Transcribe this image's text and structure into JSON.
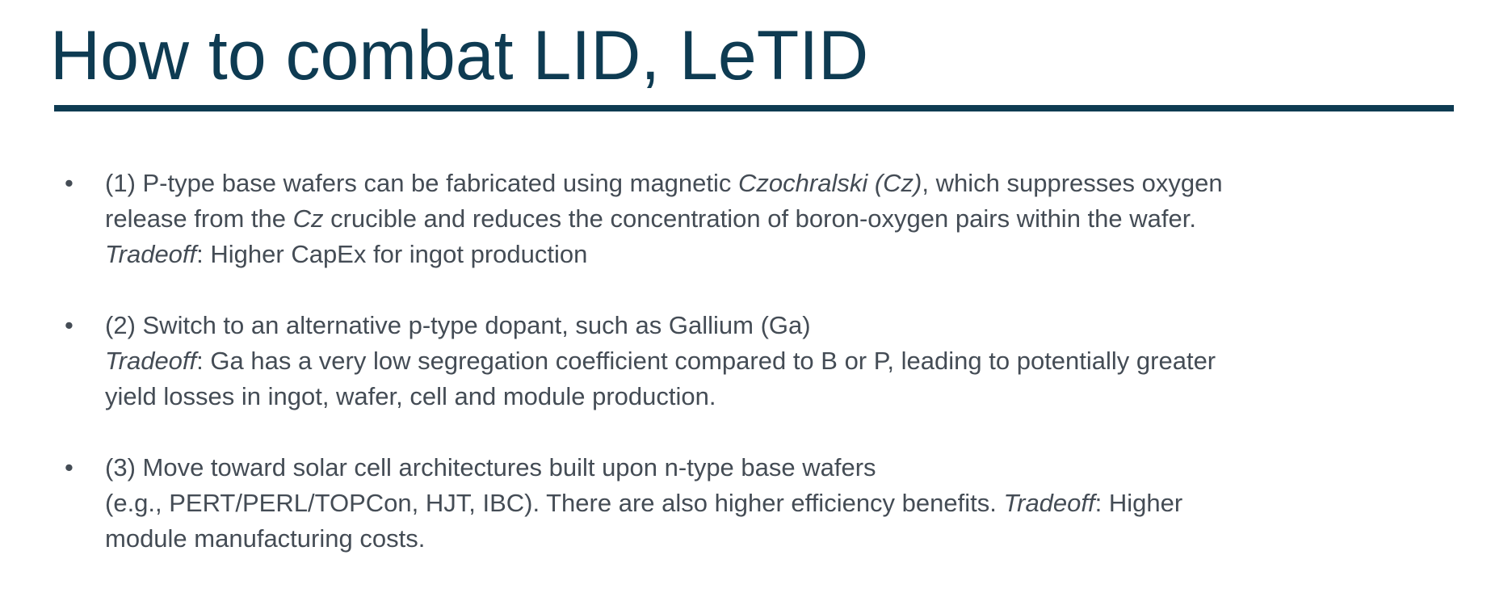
{
  "slide": {
    "title": "How to combat LID, LeTID",
    "bullet_marker": "•",
    "bullets": [
      {
        "lines": [
          [
            {
              "text": "(1)  P-type base wafers can be fabricated using magnetic ",
              "italic": false
            },
            {
              "text": "Czochralski (Cz)",
              "italic": true
            },
            {
              "text": ", which suppresses oxygen",
              "italic": false
            }
          ],
          [
            {
              "text": "release from the ",
              "italic": false
            },
            {
              "text": "Cz",
              "italic": true
            },
            {
              "text": " crucible and reduces the concentration of boron-oxygen pairs within the wafer.",
              "italic": false
            }
          ],
          [
            {
              "text": "Tradeoff",
              "italic": true
            },
            {
              "text": ": Higher CapEx for ingot production",
              "italic": false
            }
          ]
        ]
      },
      {
        "lines": [
          [
            {
              "text": "(2)  Switch to an alternative p-type dopant, such as Gallium (Ga)",
              "italic": false
            }
          ],
          [
            {
              "text": "Tradeoff",
              "italic": true
            },
            {
              "text": ": Ga has a very low segregation coefficient compared to B or P, leading to potentially greater",
              "italic": false
            }
          ],
          [
            {
              "text": "yield losses in ingot, wafer, cell and module production.",
              "italic": false
            }
          ]
        ]
      },
      {
        "lines": [
          [
            {
              "text": "(3)  Move toward solar cell architectures built upon n-type base wafers",
              "italic": false
            }
          ],
          [
            {
              "text": "(e.g., PERT/PERL/TOPCon, HJT, IBC). There are also higher efficiency benefits. ",
              "italic": false
            },
            {
              "text": "Tradeoff",
              "italic": true
            },
            {
              "text": ": Higher",
              "italic": false
            }
          ],
          [
            {
              "text": "module manufacturing costs.",
              "italic": false
            }
          ]
        ]
      }
    ]
  },
  "colors": {
    "title": "#0e3b52",
    "rule": "#0e3b52",
    "body_text": "#444c55",
    "background": "#ffffff"
  }
}
